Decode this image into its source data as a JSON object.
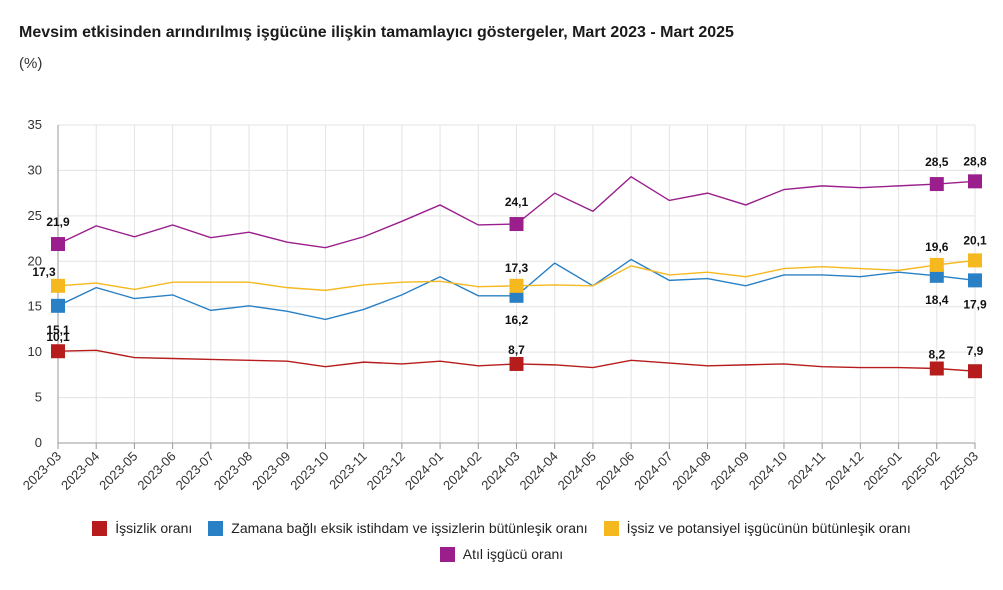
{
  "title": "Mevsim etkisinden arındırılmış işgücüne ilişkin tamamlayıcı göstergeler, Mart 2023 - Mart 2025",
  "subtitle": "(%)",
  "chart_data": {
    "type": "line",
    "title": "Mevsim etkisinden arındırılmış işgücüne ilişkin tamamlayıcı göstergeler, Mart 2023 - Mart 2025",
    "subtitle": "(%)",
    "ylim": [
      0,
      35
    ],
    "yticks": [
      0,
      5,
      10,
      15,
      20,
      25,
      30,
      35
    ],
    "grid": true,
    "legend_position": "bottom",
    "categories": [
      "2023-03",
      "2023-04",
      "2023-05",
      "2023-06",
      "2023-07",
      "2023-08",
      "2023-09",
      "2023-10",
      "2023-11",
      "2023-12",
      "2024-01",
      "2024-02",
      "2024-03",
      "2024-04",
      "2024-05",
      "2024-06",
      "2024-07",
      "2024-08",
      "2024-09",
      "2024-10",
      "2024-11",
      "2024-12",
      "2025-01",
      "2025-02",
      "2025-03"
    ],
    "series": [
      {
        "name": "İşsizlik oranı",
        "color": "#b71c1c",
        "values": [
          10.1,
          10.2,
          9.4,
          9.3,
          9.2,
          9.1,
          9.0,
          8.4,
          8.9,
          8.7,
          9.0,
          8.5,
          8.7,
          8.6,
          8.3,
          9.1,
          8.8,
          8.5,
          8.6,
          8.7,
          8.4,
          8.3,
          8.3,
          8.2,
          7.9
        ],
        "labels": {
          "0": "10,1",
          "12": "8,7",
          "23": "8,2",
          "24": "7,9"
        }
      },
      {
        "name": "Zamana bağlı eksik istihdam ve işsizlerin bütünleşik oranı",
        "color": "#2a80c4",
        "values": [
          15.1,
          17.1,
          15.9,
          16.3,
          14.6,
          15.1,
          14.5,
          13.6,
          14.7,
          16.3,
          18.3,
          16.2,
          16.2,
          19.8,
          17.3,
          20.2,
          17.9,
          18.1,
          17.3,
          18.5,
          18.5,
          18.3,
          18.8,
          18.4,
          17.9
        ],
        "labels": {
          "0": "15,1",
          "12": "16,2",
          "23": "18,4",
          "24": "17,9"
        }
      },
      {
        "name": "İşsiz ve potansiyel işgücünün bütünleşik oranı",
        "color": "#f5b91f",
        "values": [
          17.3,
          17.6,
          16.9,
          17.7,
          17.7,
          17.7,
          17.1,
          16.8,
          17.4,
          17.7,
          17.8,
          17.2,
          17.3,
          17.4,
          17.3,
          19.5,
          18.5,
          18.8,
          18.3,
          19.2,
          19.4,
          19.2,
          19.0,
          19.6,
          20.1
        ],
        "labels": {
          "0": "17,3",
          "12": "17,3",
          "23": "19,6",
          "24": "20,1"
        }
      },
      {
        "name": "Atıl işgücü oranı",
        "color": "#9a1f8c",
        "values": [
          21.9,
          23.9,
          22.7,
          24.0,
          22.6,
          23.2,
          22.1,
          21.5,
          22.7,
          24.4,
          26.2,
          24.0,
          24.1,
          27.5,
          25.5,
          29.3,
          26.7,
          27.5,
          26.2,
          27.9,
          28.3,
          28.1,
          28.3,
          28.5,
          28.8
        ],
        "labels": {
          "0": "21,9",
          "12": "24,1",
          "23": "28,5",
          "24": "28,8"
        }
      }
    ]
  }
}
